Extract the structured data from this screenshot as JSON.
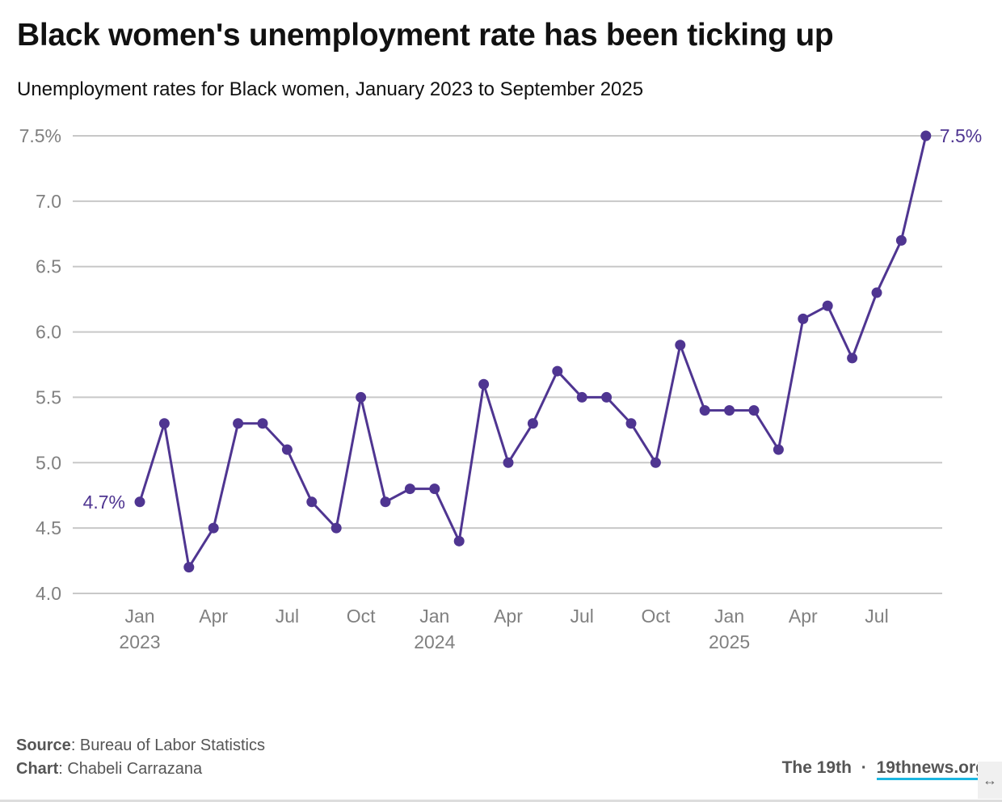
{
  "header": {
    "title": "Black women's unemployment rate has been ticking up",
    "subtitle": "Unemployment rates for Black women, January 2023 to September 2025"
  },
  "chart_data": {
    "type": "line",
    "title": "Black women's unemployment rate has been ticking up",
    "subtitle": "Unemployment rates for Black women, January 2023 to September 2025",
    "xlabel": "",
    "ylabel": "",
    "ylim": [
      4.0,
      7.5
    ],
    "grid": true,
    "line_color": "#4f3591",
    "y_ticks": [
      {
        "value": 7.5,
        "label": "7.5%"
      },
      {
        "value": 7.0,
        "label": "7.0"
      },
      {
        "value": 6.5,
        "label": "6.5"
      },
      {
        "value": 6.0,
        "label": "6.0"
      },
      {
        "value": 5.5,
        "label": "5.5"
      },
      {
        "value": 5.0,
        "label": "5.0"
      },
      {
        "value": 4.5,
        "label": "4.5"
      },
      {
        "value": 4.0,
        "label": "4.0"
      }
    ],
    "x_ticks": [
      {
        "index": 0,
        "label": "Jan",
        "year": "2023"
      },
      {
        "index": 3,
        "label": "Apr",
        "year": ""
      },
      {
        "index": 6,
        "label": "Jul",
        "year": ""
      },
      {
        "index": 9,
        "label": "Oct",
        "year": ""
      },
      {
        "index": 12,
        "label": "Jan",
        "year": "2024"
      },
      {
        "index": 15,
        "label": "Apr",
        "year": ""
      },
      {
        "index": 18,
        "label": "Jul",
        "year": ""
      },
      {
        "index": 21,
        "label": "Oct",
        "year": ""
      },
      {
        "index": 24,
        "label": "Jan",
        "year": "2025"
      },
      {
        "index": 27,
        "label": "Apr",
        "year": ""
      },
      {
        "index": 30,
        "label": "Jul",
        "year": ""
      }
    ],
    "x": [
      "2023-01",
      "2023-02",
      "2023-03",
      "2023-04",
      "2023-05",
      "2023-06",
      "2023-07",
      "2023-08",
      "2023-09",
      "2023-10",
      "2023-11",
      "2023-12",
      "2024-01",
      "2024-02",
      "2024-03",
      "2024-04",
      "2024-05",
      "2024-06",
      "2024-07",
      "2024-08",
      "2024-09",
      "2024-10",
      "2024-11",
      "2024-12",
      "2025-01",
      "2025-02",
      "2025-03",
      "2025-04",
      "2025-05",
      "2025-06",
      "2025-07",
      "2025-08",
      "2025-09"
    ],
    "series": [
      {
        "name": "Black women unemployment rate",
        "values": [
          4.7,
          5.3,
          4.2,
          4.5,
          5.3,
          5.3,
          5.1,
          4.7,
          4.5,
          5.5,
          4.7,
          4.8,
          4.8,
          4.4,
          5.6,
          5.0,
          5.3,
          5.7,
          5.5,
          5.5,
          5.3,
          5.0,
          5.9,
          5.4,
          5.4,
          5.4,
          5.1,
          6.1,
          6.2,
          5.8,
          6.3,
          6.7,
          7.5
        ]
      }
    ],
    "annotations": [
      {
        "index": 0,
        "label": "4.7%",
        "side": "left"
      },
      {
        "index": 32,
        "label": "7.5%",
        "side": "right"
      }
    ]
  },
  "footer": {
    "source_label": "Source",
    "source_value": ": Bureau of Labor Statistics",
    "chart_label": "Chart",
    "chart_value": ": Chabeli Carrazana",
    "brand": "The 19th",
    "separator": "·",
    "link": "19thnews.org"
  },
  "icons": {
    "resize": "↔"
  }
}
